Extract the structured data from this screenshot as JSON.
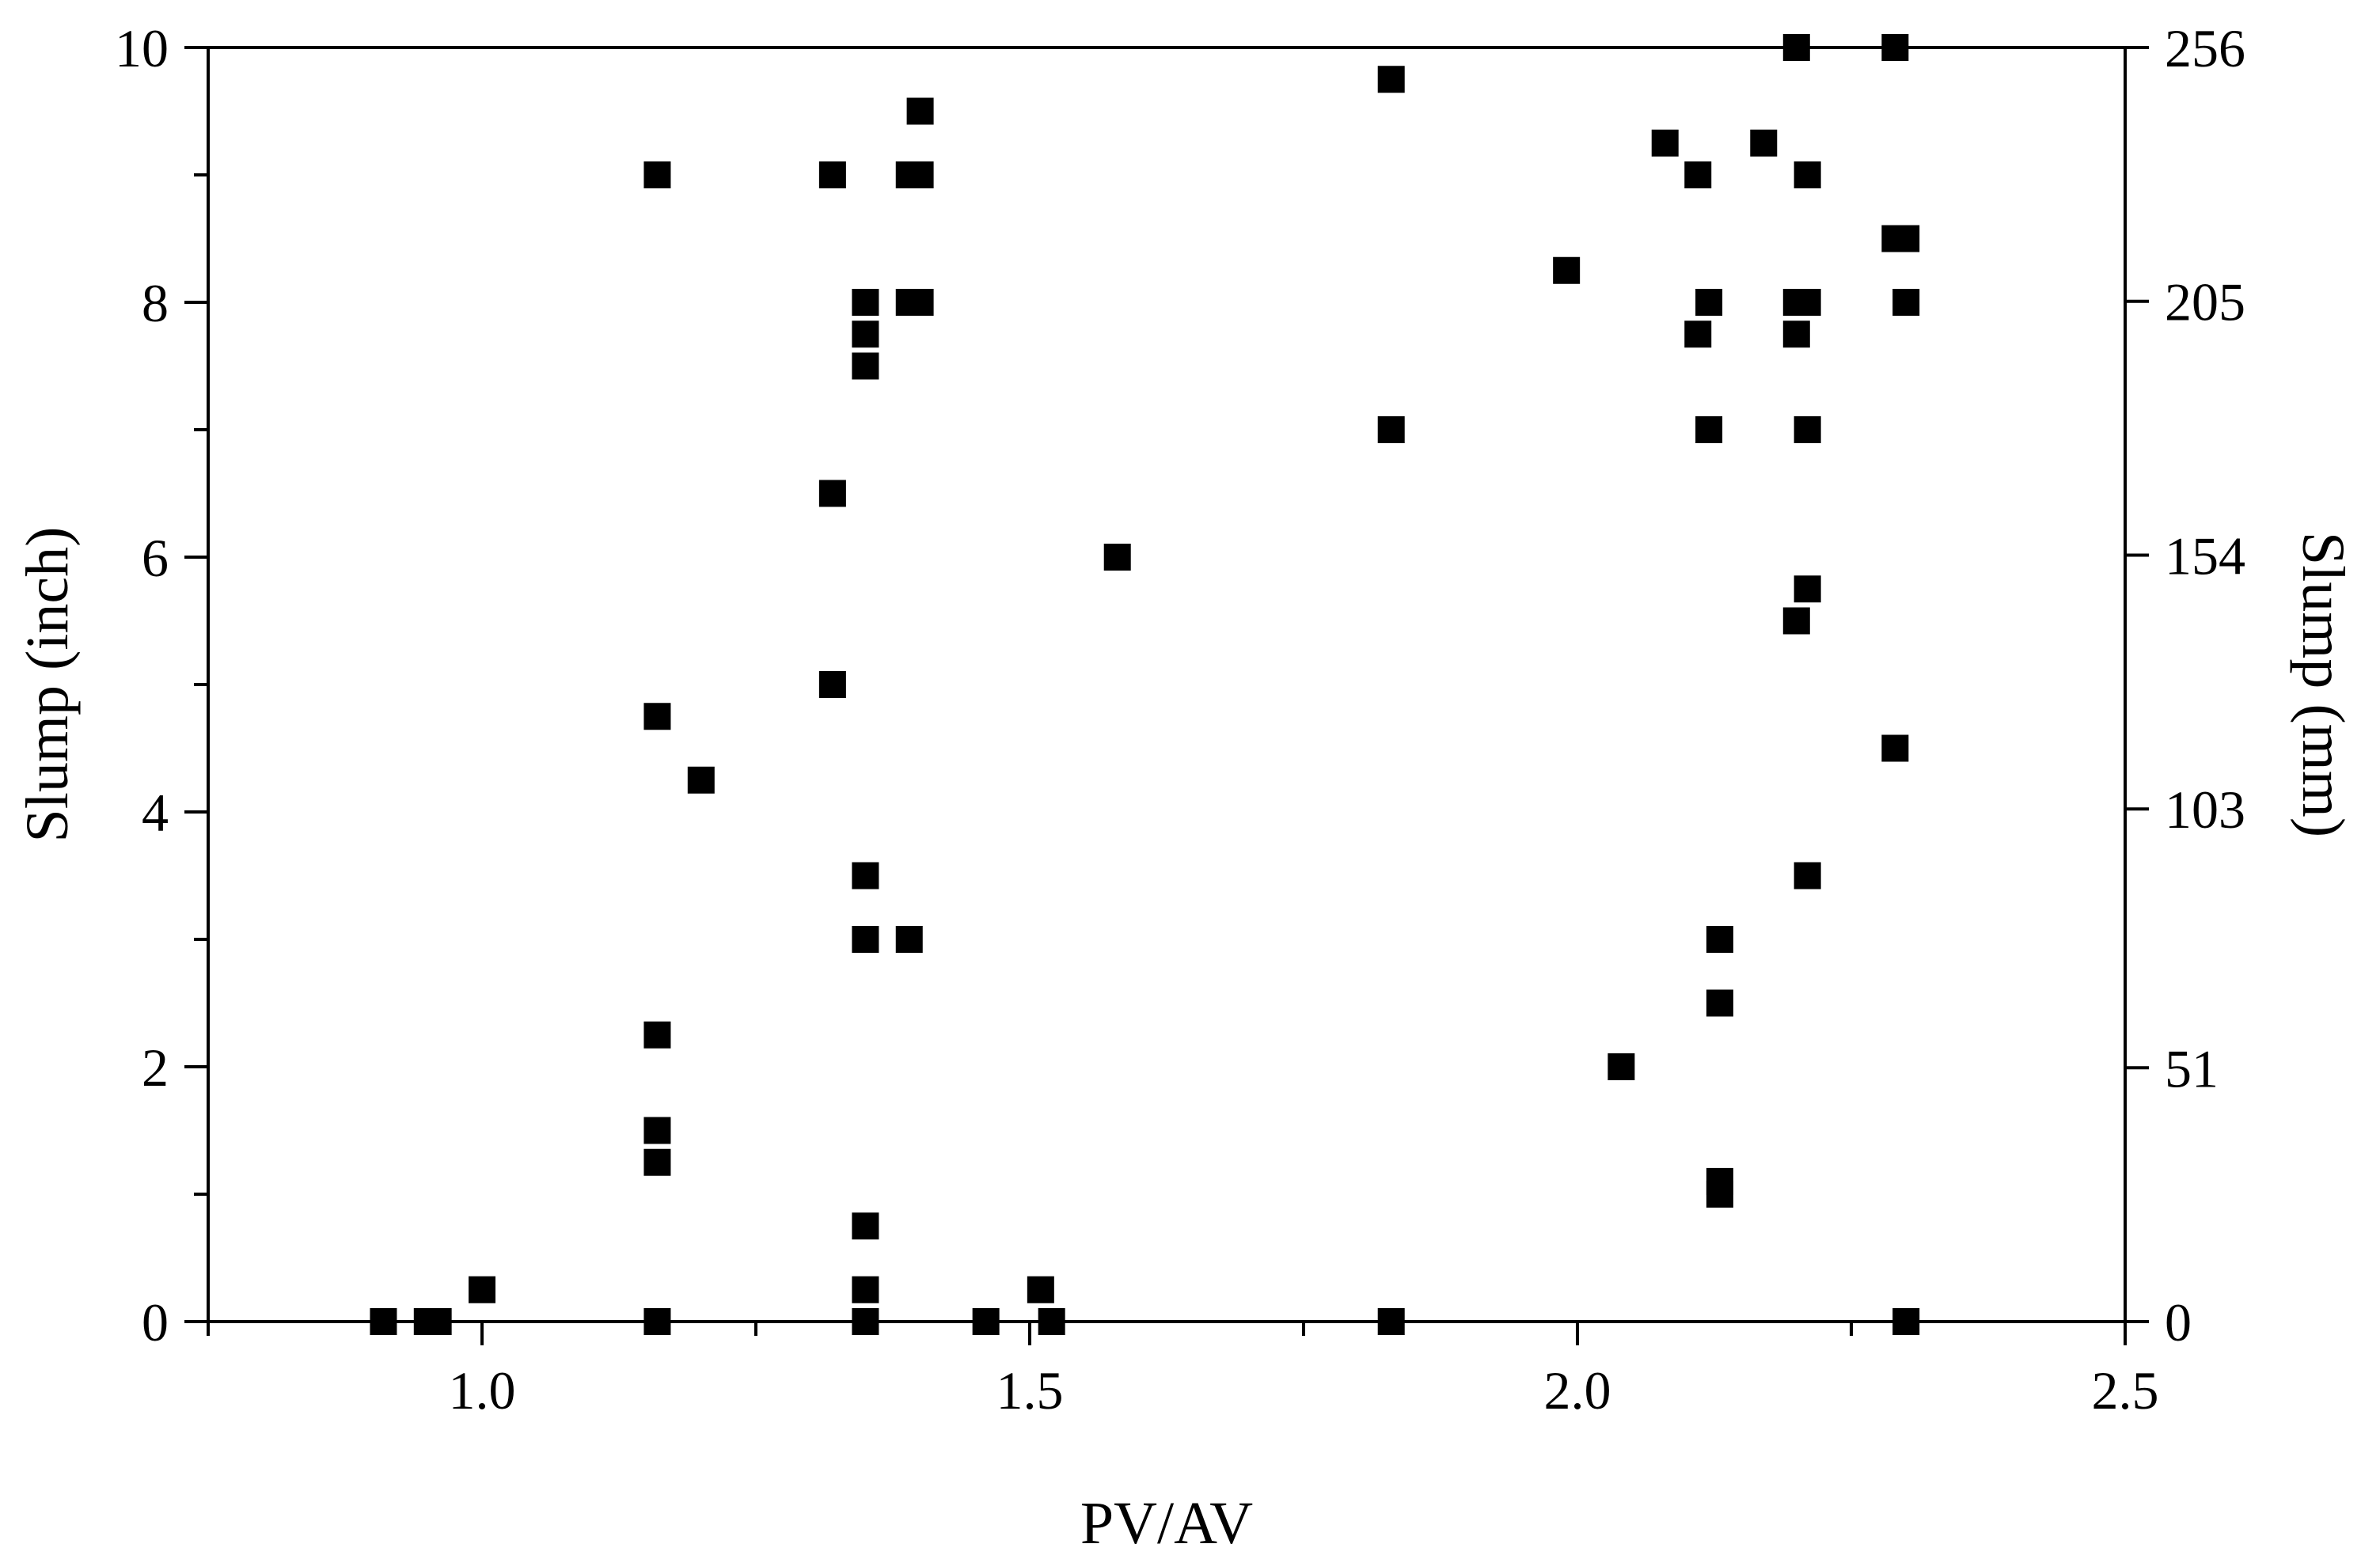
{
  "chart_data": {
    "type": "scatter",
    "title": "",
    "xlabel": "PV/AV",
    "ylabel": "Slump (inch)",
    "y2label": "Slump (mm)",
    "xlim": [
      0.75,
      2.5
    ],
    "ylim": [
      0,
      10
    ],
    "y2lim": [
      0,
      256
    ],
    "x_ticks": [
      1.0,
      1.5,
      2.0,
      2.5
    ],
    "x_tick_labels": [
      "1.0",
      "1.5",
      "2.0",
      "2.5"
    ],
    "y_ticks": [
      0,
      2,
      4,
      6,
      8,
      10
    ],
    "y_tick_labels": [
      "0",
      "2",
      "4",
      "6",
      "8",
      "10"
    ],
    "y2_ticks": [
      0,
      51,
      103,
      154,
      205,
      256
    ],
    "y2_tick_labels": [
      "0",
      "51",
      "103",
      "154",
      "205",
      "256"
    ],
    "grid": false,
    "marker": "square",
    "color": "#000000",
    "points": [
      [
        0.91,
        0
      ],
      [
        0.95,
        0
      ],
      [
        0.96,
        0
      ],
      [
        1.0,
        0.25
      ],
      [
        1.16,
        9.0
      ],
      [
        1.16,
        4.75
      ],
      [
        1.16,
        2.25
      ],
      [
        1.16,
        1.5
      ],
      [
        1.16,
        1.25
      ],
      [
        1.16,
        0
      ],
      [
        1.2,
        4.25
      ],
      [
        1.32,
        9.0
      ],
      [
        1.32,
        6.5
      ],
      [
        1.32,
        5.0
      ],
      [
        1.35,
        8.0
      ],
      [
        1.35,
        7.75
      ],
      [
        1.35,
        7.5
      ],
      [
        1.35,
        3.5
      ],
      [
        1.35,
        3.0
      ],
      [
        1.35,
        0.75
      ],
      [
        1.35,
        0.25
      ],
      [
        1.35,
        0
      ],
      [
        1.39,
        9.0
      ],
      [
        1.39,
        8.0
      ],
      [
        1.39,
        3.0
      ],
      [
        1.4,
        9.5
      ],
      [
        1.4,
        9.0
      ],
      [
        1.4,
        8.0
      ],
      [
        1.46,
        0
      ],
      [
        1.51,
        0.25
      ],
      [
        1.52,
        0
      ],
      [
        1.58,
        6.0
      ],
      [
        1.83,
        9.75
      ],
      [
        1.83,
        7.0
      ],
      [
        1.83,
        0
      ],
      [
        1.99,
        8.25
      ],
      [
        2.04,
        2.0
      ],
      [
        2.08,
        9.25
      ],
      [
        2.11,
        9.0
      ],
      [
        2.11,
        7.75
      ],
      [
        2.12,
        8.0
      ],
      [
        2.12,
        7.0
      ],
      [
        2.13,
        3.0
      ],
      [
        2.13,
        2.5
      ],
      [
        2.13,
        1.1
      ],
      [
        2.13,
        1.0
      ],
      [
        2.17,
        9.25
      ],
      [
        2.2,
        10.0
      ],
      [
        2.2,
        8.0
      ],
      [
        2.2,
        7.75
      ],
      [
        2.2,
        5.5
      ],
      [
        2.21,
        9.0
      ],
      [
        2.21,
        8.0
      ],
      [
        2.21,
        7.0
      ],
      [
        2.21,
        5.75
      ],
      [
        2.21,
        3.5
      ],
      [
        2.29,
        10.0
      ],
      [
        2.29,
        8.5
      ],
      [
        2.29,
        4.5
      ],
      [
        2.3,
        8.5
      ],
      [
        2.3,
        8.0
      ],
      [
        2.3,
        0
      ]
    ]
  }
}
